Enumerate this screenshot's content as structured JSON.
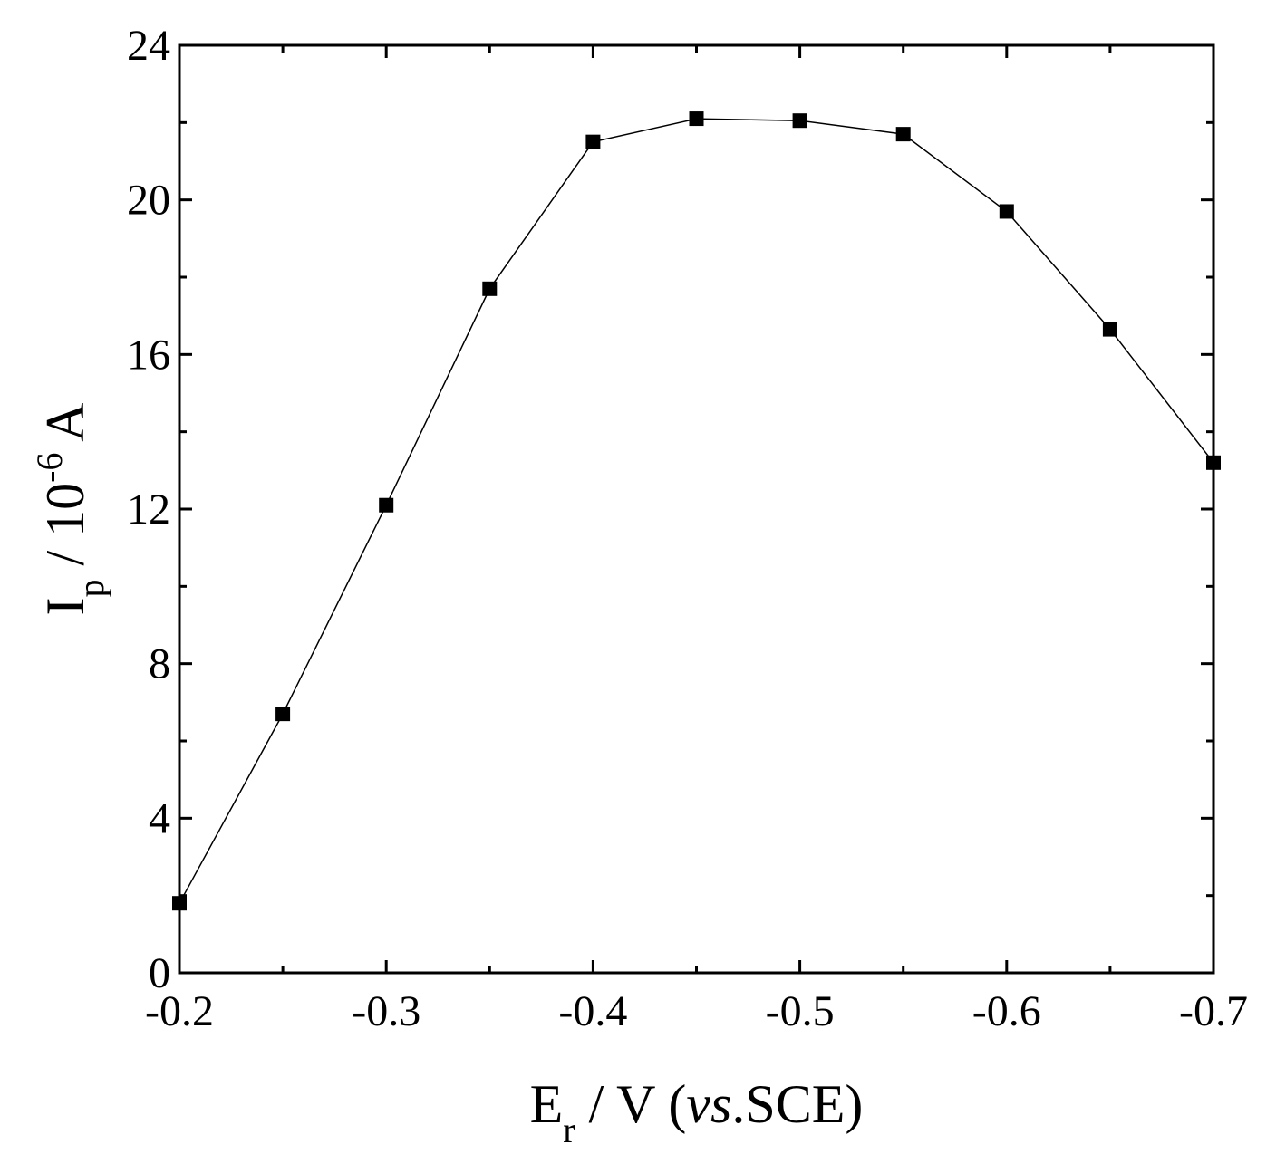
{
  "chart_data": {
    "type": "line",
    "x": [
      -0.2,
      -0.25,
      -0.3,
      -0.35,
      -0.4,
      -0.45,
      -0.5,
      -0.55,
      -0.6,
      -0.65,
      -0.7
    ],
    "series": [
      {
        "values": [
          1.8,
          6.7,
          12.1,
          17.7,
          21.5,
          22.1,
          22.05,
          21.7,
          19.7,
          16.65,
          13.2
        ],
        "marker": "square",
        "color": "#000000"
      }
    ],
    "xlim": [
      -0.2,
      -0.7
    ],
    "ylim": [
      0,
      24
    ],
    "x_ticks": [
      "-0.2",
      "-0.3",
      "-0.4",
      "-0.5",
      "-0.6",
      "-0.7"
    ],
    "x_tick_values": [
      -0.2,
      -0.3,
      -0.4,
      -0.5,
      -0.6,
      -0.7
    ],
    "x_minor_tick_values": [
      -0.25,
      -0.35,
      -0.45,
      -0.55,
      -0.65
    ],
    "y_ticks": [
      "0",
      "4",
      "8",
      "12",
      "16",
      "20",
      "24"
    ],
    "y_tick_values": [
      0,
      4,
      8,
      12,
      16,
      20,
      24
    ],
    "y_minor_tick_values": [
      2,
      6,
      10,
      14,
      18,
      22
    ],
    "xlabel": {
      "main": "E",
      "sub": "r",
      "mid": " / V (",
      "italic": "vs",
      "end": ".SCE)"
    },
    "ylabel": {
      "main": "I",
      "sub": "p",
      "mid": " / 10",
      "sup": "-6",
      "end": " A"
    },
    "grid": false,
    "legend": "none"
  }
}
